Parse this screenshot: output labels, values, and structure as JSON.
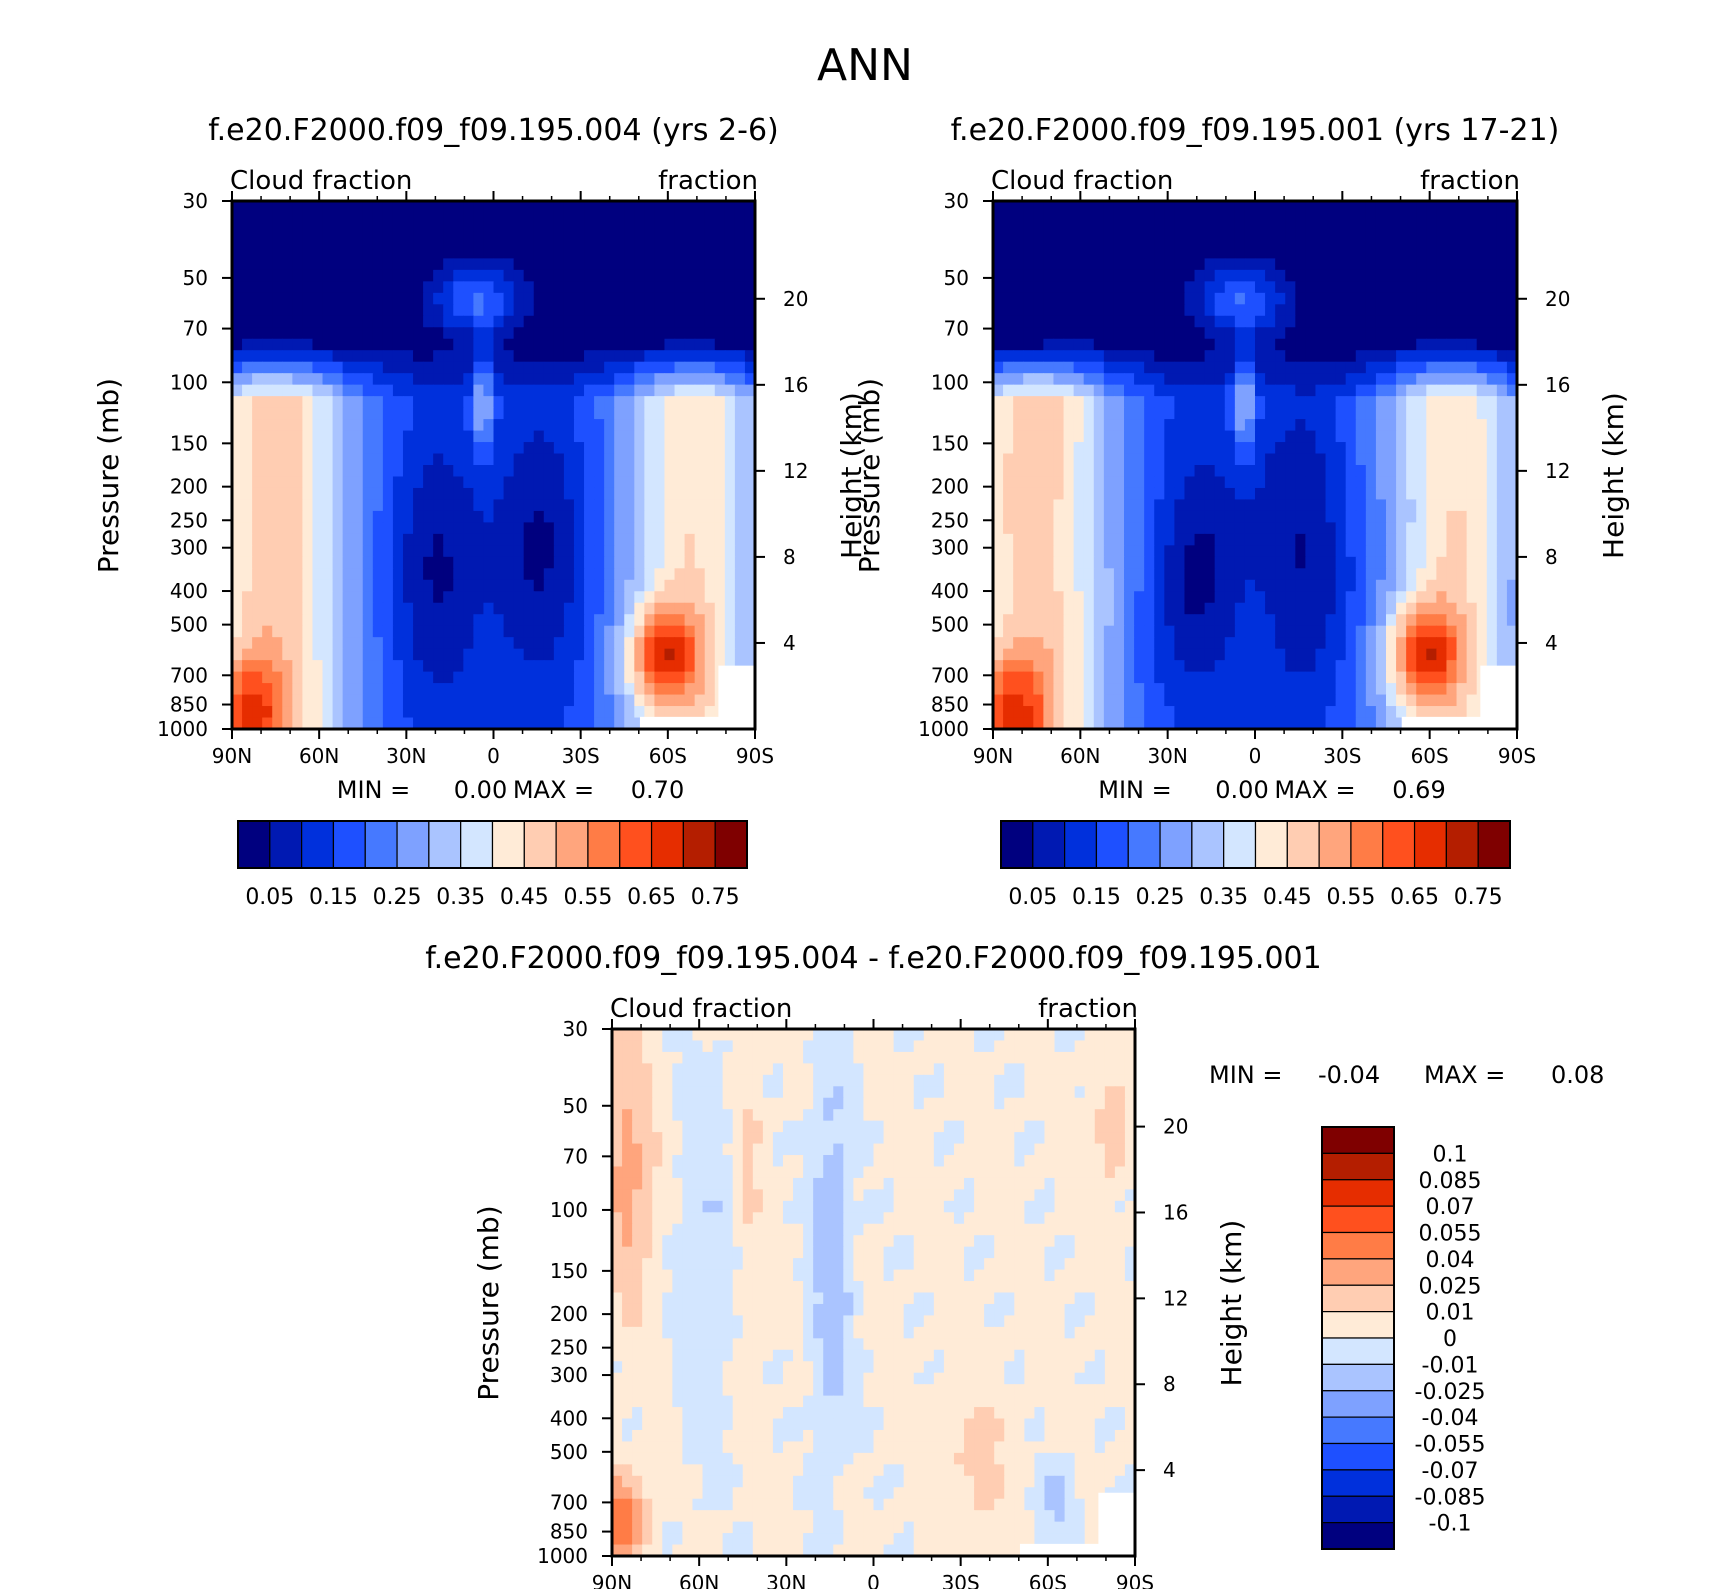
{
  "figure": {
    "title": "ANN"
  },
  "colors": {
    "abs_palette": [
      "#00007f",
      "#0019b2",
      "#0030dc",
      "#1e50ff",
      "#4679ff",
      "#7ea1ff",
      "#aac4ff",
      "#d3e6ff",
      "#ffebd7",
      "#ffcdb2",
      "#ffa57d",
      "#ff7c46",
      "#ff501e",
      "#e62d00",
      "#b41e00",
      "#7f0000"
    ],
    "diff_palette": [
      "#00007f",
      "#0019b2",
      "#0030dc",
      "#1e50ff",
      "#4679ff",
      "#7ea1ff",
      "#aac4ff",
      "#d3e6ff",
      "#ffebd7",
      "#ffcdb2",
      "#ffa57d",
      "#ff7c46",
      "#ff501e",
      "#e62d00",
      "#b41e00",
      "#7f0000"
    ]
  },
  "chart_data": [
    {
      "type": "heatmap",
      "id": "case1",
      "title": "f.e20.F2000.f09_f09.195.004 (yrs 2-6)",
      "left_label": "Cloud fraction",
      "right_label": "fraction",
      "ylabel": "Pressure (mb)",
      "y2label": "Height (km)",
      "x_ticks": [
        "90N",
        "60N",
        "30N",
        "0",
        "30S",
        "60S",
        "90S"
      ],
      "y_ticks": [
        "30",
        "50",
        "70",
        "100",
        "150",
        "200",
        "250",
        "300",
        "400",
        "500",
        "700",
        "850",
        "1000"
      ],
      "y2_ticks": [
        "20",
        "16",
        "12",
        "8",
        "4"
      ],
      "min_label": "MIN =",
      "min_value": "0.00",
      "max_label": "MAX =",
      "max_value": "0.70",
      "colorbar_labels": [
        "0.05",
        "0.15",
        "0.25",
        "0.35",
        "0.45",
        "0.55",
        "0.65",
        "0.75"
      ]
    },
    {
      "type": "heatmap",
      "id": "case2",
      "title": "f.e20.F2000.f09_f09.195.001 (yrs 17-21)",
      "left_label": "Cloud fraction",
      "right_label": "fraction",
      "ylabel": "Pressure (mb)",
      "y2label": "Height (km)",
      "x_ticks": [
        "90N",
        "60N",
        "30N",
        "0",
        "30S",
        "60S",
        "90S"
      ],
      "y_ticks": [
        "30",
        "50",
        "70",
        "100",
        "150",
        "200",
        "250",
        "300",
        "400",
        "500",
        "700",
        "850",
        "1000"
      ],
      "y2_ticks": [
        "20",
        "16",
        "12",
        "8",
        "4"
      ],
      "min_label": "MIN =",
      "min_value": "0.00",
      "max_label": "MAX =",
      "max_value": "0.69",
      "colorbar_labels": [
        "0.05",
        "0.15",
        "0.25",
        "0.35",
        "0.45",
        "0.55",
        "0.65",
        "0.75"
      ]
    },
    {
      "type": "heatmap",
      "id": "diff",
      "title": "f.e20.F2000.f09_f09.195.004 - f.e20.F2000.f09_f09.195.001",
      "left_label": "Cloud fraction",
      "right_label": "fraction",
      "ylabel": "Pressure (mb)",
      "y2label": "Height (km)",
      "x_ticks": [
        "90N",
        "60N",
        "30N",
        "0",
        "30S",
        "60S",
        "90S"
      ],
      "y_ticks": [
        "30",
        "50",
        "70",
        "100",
        "150",
        "200",
        "250",
        "300",
        "400",
        "500",
        "700",
        "850",
        "1000"
      ],
      "y2_ticks": [
        "20",
        "16",
        "12",
        "8",
        "4"
      ],
      "min_label": "MIN =",
      "min_value": "-0.04",
      "max_label": "MAX =",
      "max_value": "0.08",
      "colorbar_labels": [
        "0.1",
        "0.085",
        "0.07",
        "0.055",
        "0.04",
        "0.025",
        "0.01",
        "0",
        "-0.01",
        "-0.025",
        "-0.04",
        "-0.055",
        "-0.07",
        "-0.085",
        "-0.1"
      ]
    }
  ]
}
